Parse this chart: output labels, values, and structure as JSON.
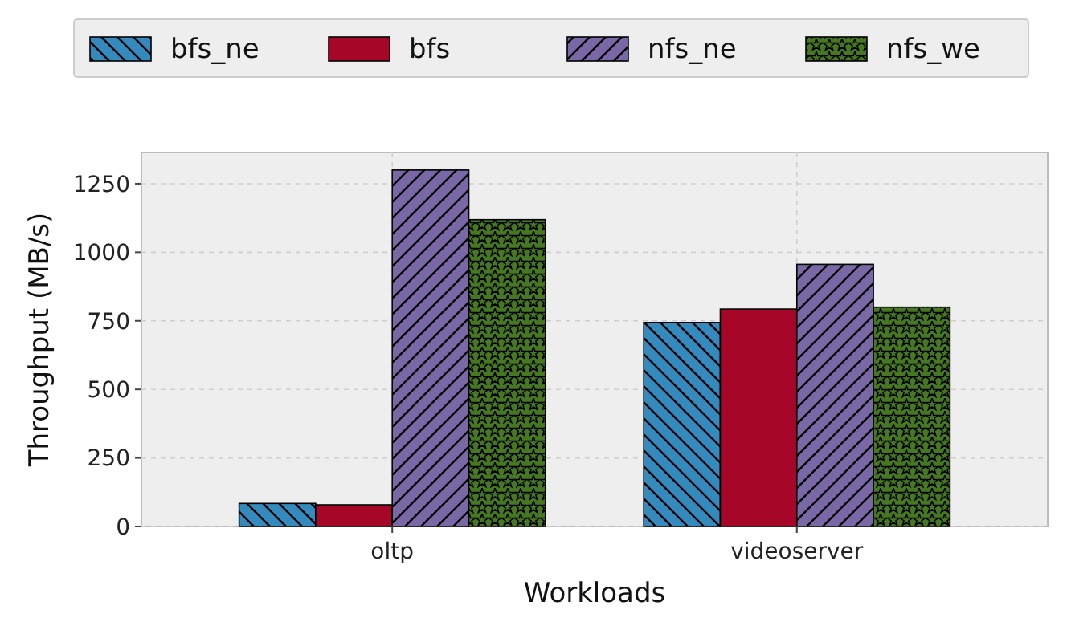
{
  "chart_data": {
    "type": "bar",
    "xlabel": "Workloads",
    "ylabel": "Throughput (MB/s)",
    "categories": [
      "oltp",
      "videoserver"
    ],
    "series": [
      {
        "name": "bfs_ne",
        "color": "#348abd",
        "values": [
          84,
          744
        ]
      },
      {
        "name": "bfs",
        "color": "#a60628",
        "values": [
          79,
          793
        ]
      },
      {
        "name": "nfs_ne",
        "color": "#7a68a6",
        "values": [
          1300,
          956
        ]
      },
      {
        "name": "nfs_we",
        "color": "#467821",
        "values": [
          1119,
          800
        ]
      }
    ],
    "ylim": [
      0,
      1364
    ],
    "yticks": [
      0,
      250,
      500,
      750,
      1000,
      1250
    ],
    "grid": true,
    "legend": "top"
  }
}
